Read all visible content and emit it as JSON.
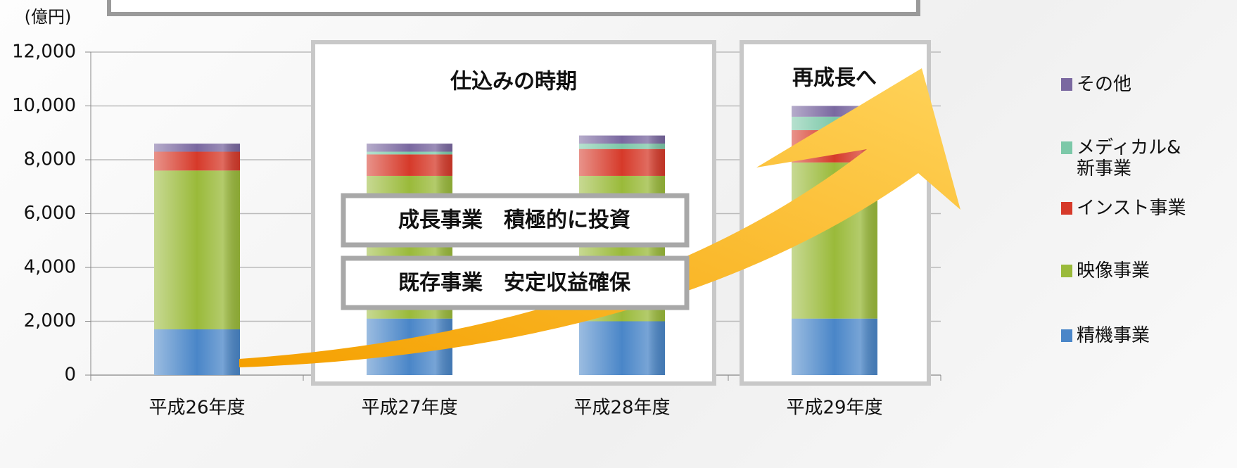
{
  "chart_data": {
    "type": "bar",
    "stacked": true,
    "y_unit_label": "(億円)",
    "categories": [
      "平成26年度",
      "平成27年度",
      "平成28年度",
      "平成29年度"
    ],
    "series": [
      {
        "name": "精機事業",
        "color": "#4a86c8",
        "values": [
          1700,
          2100,
          2000,
          2100
        ]
      },
      {
        "name": "映像事業",
        "color": "#9aba3a",
        "values": [
          5900,
          5300,
          5400,
          5800
        ]
      },
      {
        "name": "インスト事業",
        "color": "#d63a2a",
        "values": [
          700,
          800,
          1000,
          1200
        ]
      },
      {
        "name": "メディカル&新事業",
        "color": "#7cc8a8",
        "values": [
          0,
          100,
          200,
          500
        ]
      },
      {
        "name": "その他",
        "color": "#7a68a0",
        "values": [
          300,
          300,
          300,
          400
        ]
      }
    ],
    "ylim": [
      0,
      12000
    ],
    "yticks": [
      0,
      {
        "value": 2000,
        "label": "2,000"
      },
      {
        "value": 4000,
        "label": "4,000"
      },
      {
        "value": 6000,
        "label": "6,000"
      },
      {
        "value": 8000,
        "label": "8,000"
      },
      {
        "value": 10000,
        "label": "10,000"
      },
      {
        "value": 12000,
        "label": "12,000"
      }
    ],
    "grid": true,
    "annotations": {
      "phase1": "仕込みの時期",
      "phase2": "再成長へ",
      "box1": "成長事業　積極的に投資",
      "box2": "既存事業　安定収益確保"
    }
  }
}
